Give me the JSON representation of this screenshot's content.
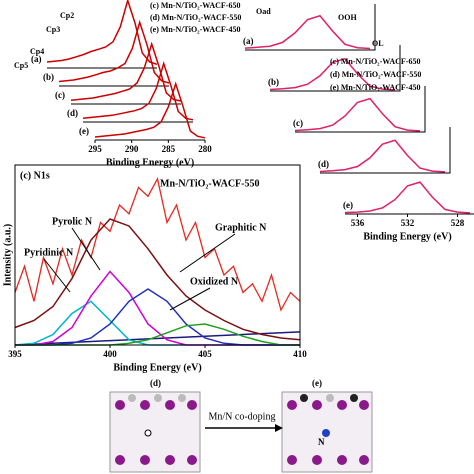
{
  "chart_data": [
    {
      "type": "line",
      "x_label": "Binding Energy (eV)",
      "x": [
        295,
        294,
        293,
        292,
        291,
        290,
        289,
        288,
        287,
        286,
        285,
        284,
        283,
        282,
        281,
        280
      ],
      "xlim": [
        295,
        280
      ],
      "xticks": [
        295,
        290,
        285,
        280
      ],
      "ylim": [
        0,
        100
      ],
      "legend": [
        "(c) Mn-N/TiO₂-WACF-650",
        "(d) Mn-N/TiO₂-WACF-550",
        "(e) Mn-N/TiO₂-WACF-450"
      ],
      "peak_labels": [
        "Cp2",
        "Cp3",
        "Cp4",
        "Cp5"
      ],
      "series": [
        {
          "name": "(a)",
          "color": "#cc0000",
          "values": [
            8,
            9,
            10,
            12,
            15,
            18,
            22,
            25,
            28,
            35,
            55,
            90,
            60,
            20,
            8,
            5
          ]
        },
        {
          "name": "(b)",
          "color": "#cc0000",
          "values": [
            6,
            7,
            8,
            10,
            12,
            15,
            18,
            20,
            24,
            30,
            50,
            85,
            55,
            18,
            7,
            4
          ]
        },
        {
          "name": "(c)",
          "color": "#cc0000",
          "values": [
            5,
            6,
            7,
            8,
            10,
            12,
            14,
            17,
            20,
            28,
            48,
            80,
            50,
            15,
            6,
            4
          ]
        },
        {
          "name": "(d)",
          "color": "#cc0000",
          "values": [
            5,
            6,
            7,
            8,
            9,
            11,
            13,
            15,
            18,
            25,
            45,
            78,
            48,
            14,
            5,
            3
          ]
        },
        {
          "name": "(e)",
          "color": "#cc0000",
          "values": [
            4,
            5,
            6,
            7,
            8,
            10,
            12,
            14,
            17,
            24,
            44,
            75,
            45,
            12,
            5,
            3
          ]
        }
      ]
    },
    {
      "type": "line",
      "x_label": "Binding Energy (eV)",
      "x": [
        537,
        536,
        535,
        534,
        533,
        532,
        531,
        530,
        529,
        528,
        527
      ],
      "xlim": [
        537,
        527
      ],
      "xticks": [
        536,
        532,
        528
      ],
      "ylim": [
        0,
        100
      ],
      "legend": [
        "(c) Mn-N/TiO₂-WACF-650",
        "(d) Mn-N/TiO₂-WACF-550",
        "(e) Mn-N/TiO₂-WACF-450"
      ],
      "peak_labels": [
        "Oad",
        "OOH",
        "OL"
      ],
      "series": [
        {
          "name": "(a)",
          "color": "#e0206a",
          "values": [
            5,
            7,
            10,
            20,
            45,
            80,
            90,
            50,
            15,
            6,
            4
          ]
        },
        {
          "name": "(b)",
          "color": "#e0206a",
          "values": [
            4,
            6,
            9,
            18,
            40,
            75,
            85,
            45,
            13,
            5,
            3
          ]
        },
        {
          "name": "(c)",
          "color": "#e0206a",
          "values": [
            4,
            6,
            9,
            18,
            42,
            78,
            88,
            48,
            14,
            5,
            3
          ]
        },
        {
          "name": "(d)",
          "color": "#e0206a",
          "values": [
            4,
            6,
            9,
            17,
            40,
            76,
            86,
            46,
            13,
            5,
            3
          ]
        },
        {
          "name": "(e)",
          "color": "#e0206a",
          "values": [
            4,
            5,
            8,
            16,
            38,
            74,
            84,
            44,
            12,
            5,
            3
          ]
        }
      ]
    },
    {
      "type": "line",
      "title": "(c) N1s",
      "subtitle": "Mn-N/TiO₂-WACF-550",
      "x_label": "Binding Energy (eV)",
      "y_label": "Intensity (a.u.)",
      "annotations": [
        "Pyrolic N",
        "Pyridinic N",
        "Graphitic N",
        "Oxidized N"
      ],
      "x": [
        395,
        396,
        397,
        398,
        399,
        400,
        401,
        402,
        403,
        404,
        405,
        406,
        407,
        408,
        409,
        410
      ],
      "xlim": [
        395,
        410
      ],
      "xticks": [
        395,
        400,
        405,
        410
      ],
      "ylim": [
        0,
        100
      ],
      "series": [
        {
          "color": "#e8271e",
          "x": [
            395,
            395.5,
            396,
            396.5,
            397,
            397.5,
            398,
            398.5,
            399,
            399.5,
            400,
            400.5,
            401,
            401.5,
            402,
            402.5,
            403,
            403.5,
            404,
            404.5,
            405,
            405.5,
            406,
            406.5,
            407,
            407.5,
            408,
            408.5,
            409,
            409.5,
            410
          ],
          "values": [
            30,
            45,
            25,
            50,
            35,
            55,
            40,
            60,
            50,
            70,
            65,
            80,
            75,
            90,
            85,
            95,
            70,
            80,
            60,
            70,
            50,
            55,
            40,
            45,
            30,
            35,
            25,
            40,
            20,
            30,
            25
          ]
        },
        {
          "color": "#1a1a80",
          "values": [
            0,
            0.5,
            1,
            1.5,
            2,
            2.5,
            3,
            3.5,
            4,
            4.5,
            5,
            5.5,
            6,
            6.5,
            7,
            7.5
          ]
        },
        {
          "color": "#00b4c8",
          "values": [
            0,
            1,
            6,
            18,
            25,
            14,
            3,
            0,
            0,
            0,
            0,
            0,
            0,
            0,
            0,
            0
          ]
        },
        {
          "color": "#d000d0",
          "values": [
            0,
            0,
            2,
            10,
            28,
            42,
            30,
            12,
            3,
            0,
            0,
            0,
            0,
            0,
            0,
            0
          ]
        },
        {
          "color": "#2030c0",
          "values": [
            0,
            0,
            0,
            1,
            4,
            12,
            25,
            32,
            25,
            12,
            4,
            1,
            0,
            0,
            0,
            0
          ]
        },
        {
          "color": "#20a020",
          "values": [
            0,
            0,
            0,
            0,
            0,
            0,
            1,
            3,
            7,
            11,
            12,
            9,
            5,
            2,
            0,
            0
          ]
        },
        {
          "color": "#7a1010",
          "values": [
            10,
            14,
            22,
            38,
            60,
            72,
            68,
            55,
            40,
            28,
            20,
            14,
            9,
            6,
            4,
            3
          ]
        }
      ]
    }
  ],
  "diagram": {
    "left_label": "(d)",
    "right_label": "(e)",
    "arrow_label": "Mn/N co-doping",
    "dopant_label": "N"
  }
}
